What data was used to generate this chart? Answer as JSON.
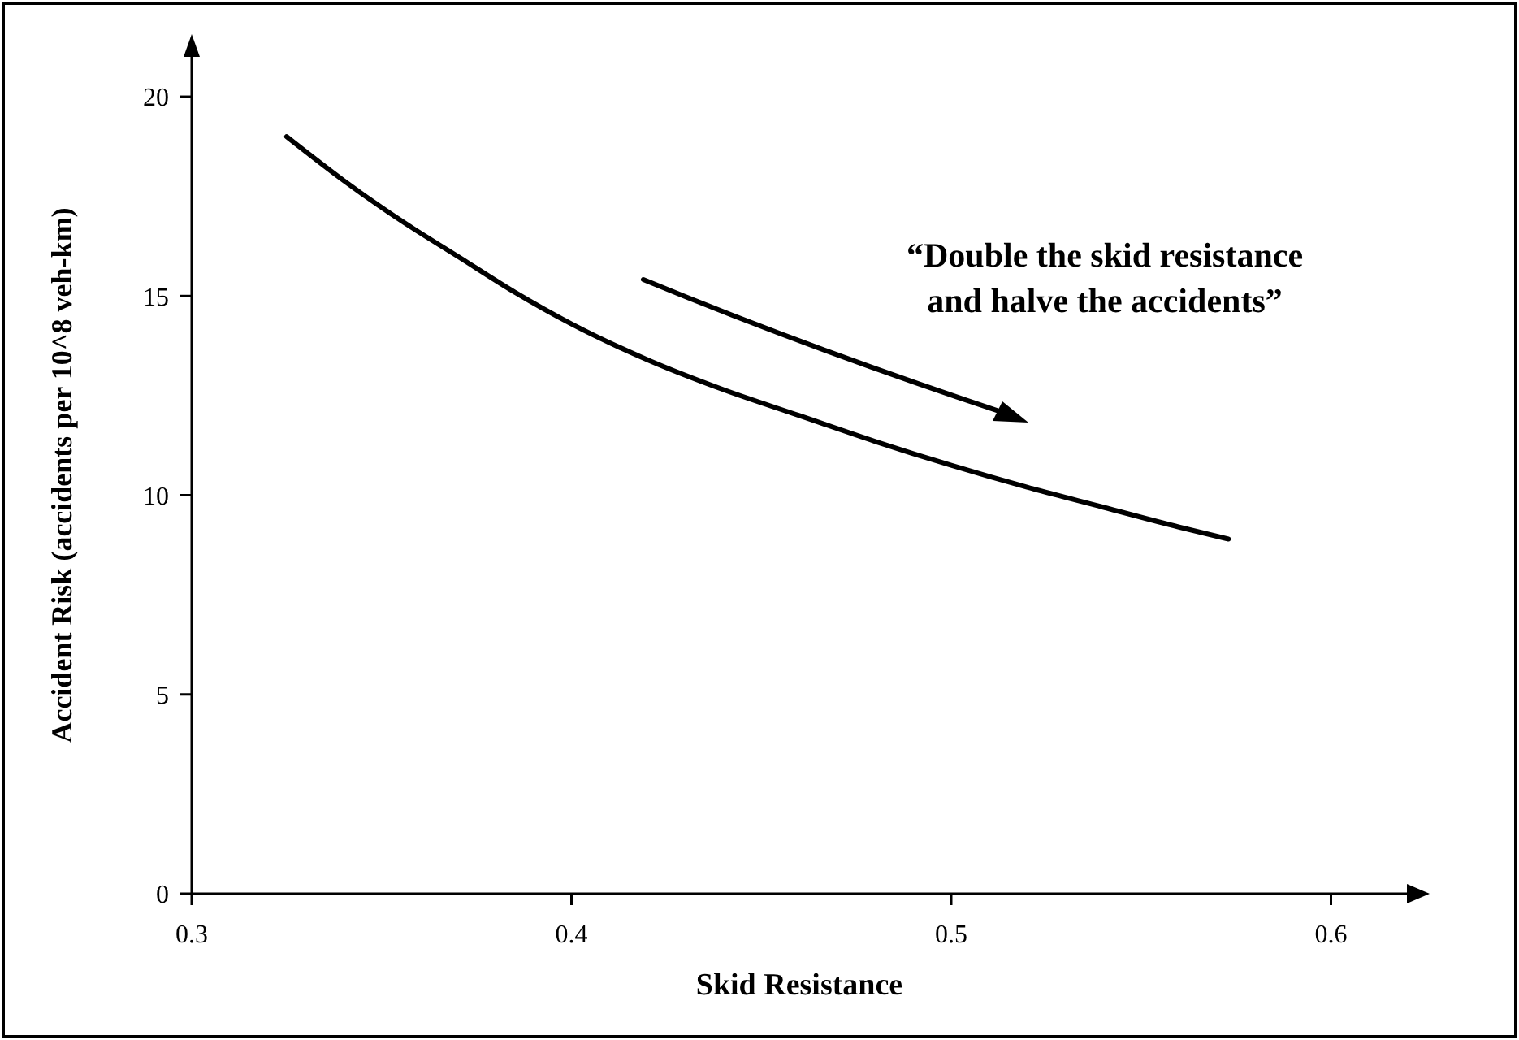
{
  "chart_data": {
    "type": "line",
    "xlabel": "Skid Resistance",
    "ylabel": "Accident Risk (accidents per 10^8 veh-km)",
    "xlim": [
      0.3,
      0.62
    ],
    "ylim": [
      0,
      21
    ],
    "xticks": [
      0.3,
      0.4,
      0.5,
      0.6
    ],
    "yticks": [
      0,
      5,
      10,
      15,
      20
    ],
    "grid": false,
    "marker": "none",
    "line_style": "solid",
    "annotations": [
      "“Double the skid resistance\nand halve the accidents”"
    ],
    "series": [
      {
        "color": "#000000",
        "x": [
          0.325,
          0.34,
          0.355,
          0.37,
          0.385,
          0.4,
          0.42,
          0.44,
          0.46,
          0.48,
          0.5,
          0.52,
          0.54,
          0.56,
          0.573
        ],
        "values": [
          19.0,
          17.9,
          16.9,
          16.0,
          15.1,
          14.3,
          13.4,
          12.65,
          12.0,
          11.35,
          10.75,
          10.2,
          9.7,
          9.2,
          8.9
        ]
      }
    ]
  }
}
